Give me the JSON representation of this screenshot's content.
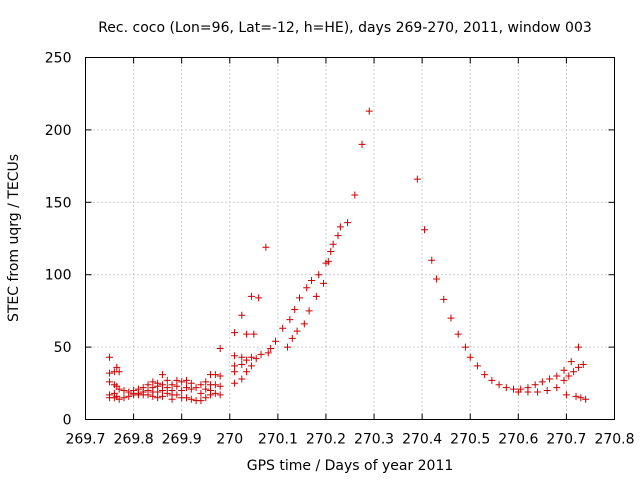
{
  "chart_data": {
    "type": "scatter",
    "title": "Rec. coco (Lon=96, Lat=-12, h=HE), days 269-270, 2011, window 003",
    "xlabel": "GPS time / Days of year 2011",
    "ylabel": "STEC from uqrg / TECUs",
    "xlim": [
      269.7,
      270.8
    ],
    "ylim": [
      0,
      250
    ],
    "xticks": [
      "269.7",
      "269.8",
      "269.9",
      "270",
      "270.1",
      "270.2",
      "270.3",
      "270.4",
      "270.5",
      "270.6",
      "270.7",
      "270.8"
    ],
    "yticks": [
      "0",
      "50",
      "100",
      "150",
      "200",
      "250"
    ],
    "grid": true,
    "marker": "+",
    "color": "#cc0000",
    "points": [
      [
        269.75,
        43
      ],
      [
        269.75,
        32
      ],
      [
        269.75,
        26
      ],
      [
        269.75,
        17
      ],
      [
        269.75,
        15
      ],
      [
        269.76,
        33
      ],
      [
        269.76,
        24
      ],
      [
        269.76,
        18
      ],
      [
        269.76,
        15
      ],
      [
        269.765,
        36
      ],
      [
        269.765,
        23
      ],
      [
        269.765,
        16
      ],
      [
        269.77,
        33
      ],
      [
        269.77,
        21
      ],
      [
        269.77,
        14
      ],
      [
        269.78,
        20
      ],
      [
        269.78,
        15
      ],
      [
        269.79,
        19
      ],
      [
        269.79,
        16
      ],
      [
        269.8,
        18
      ],
      [
        269.8,
        17
      ],
      [
        269.8,
        20
      ],
      [
        269.81,
        21
      ],
      [
        269.81,
        17
      ],
      [
        269.81,
        18
      ],
      [
        269.82,
        22
      ],
      [
        269.82,
        19
      ],
      [
        269.82,
        17
      ],
      [
        269.83,
        24
      ],
      [
        269.83,
        20
      ],
      [
        269.83,
        17
      ],
      [
        269.84,
        26
      ],
      [
        269.84,
        22
      ],
      [
        269.84,
        19
      ],
      [
        269.84,
        16
      ],
      [
        269.85,
        25
      ],
      [
        269.85,
        23
      ],
      [
        269.85,
        19
      ],
      [
        269.85,
        15
      ],
      [
        269.86,
        31
      ],
      [
        269.86,
        24
      ],
      [
        269.86,
        20
      ],
      [
        269.86,
        16
      ],
      [
        269.87,
        27
      ],
      [
        269.87,
        22
      ],
      [
        269.87,
        18
      ],
      [
        269.88,
        24
      ],
      [
        269.88,
        20
      ],
      [
        269.88,
        17
      ],
      [
        269.88,
        14
      ],
      [
        269.89,
        27
      ],
      [
        269.89,
        23
      ],
      [
        269.89,
        17
      ],
      [
        269.9,
        26
      ],
      [
        269.9,
        20
      ],
      [
        269.9,
        15
      ],
      [
        269.91,
        27
      ],
      [
        269.91,
        22
      ],
      [
        269.91,
        15
      ],
      [
        269.92,
        25
      ],
      [
        269.92,
        21
      ],
      [
        269.92,
        14
      ],
      [
        269.93,
        22
      ],
      [
        269.93,
        13
      ],
      [
        269.94,
        24
      ],
      [
        269.94,
        18
      ],
      [
        269.94,
        13
      ],
      [
        269.95,
        26
      ],
      [
        269.95,
        21
      ],
      [
        269.95,
        15
      ],
      [
        269.96,
        31
      ],
      [
        269.96,
        24
      ],
      [
        269.96,
        20
      ],
      [
        269.96,
        17
      ],
      [
        269.97,
        31
      ],
      [
        269.97,
        24
      ],
      [
        269.97,
        18
      ],
      [
        269.98,
        49
      ],
      [
        269.98,
        30
      ],
      [
        269.98,
        23
      ],
      [
        269.98,
        17
      ],
      [
        270.01,
        60
      ],
      [
        270.01,
        44
      ],
      [
        270.01,
        37
      ],
      [
        270.01,
        33
      ],
      [
        270.01,
        25
      ],
      [
        270.025,
        72
      ],
      [
        270.025,
        43
      ],
      [
        270.025,
        38
      ],
      [
        270.025,
        28
      ],
      [
        270.035,
        59
      ],
      [
        270.035,
        41
      ],
      [
        270.035,
        33
      ],
      [
        270.045,
        85
      ],
      [
        270.045,
        43
      ],
      [
        270.045,
        37
      ],
      [
        270.05,
        59
      ],
      [
        270.055,
        42
      ],
      [
        270.06,
        84
      ],
      [
        270.065,
        45
      ],
      [
        270.075,
        119
      ],
      [
        270.08,
        46
      ],
      [
        270.085,
        49
      ],
      [
        270.095,
        54
      ],
      [
        270.11,
        63
      ],
      [
        270.12,
        50
      ],
      [
        270.125,
        69
      ],
      [
        270.13,
        56
      ],
      [
        270.135,
        76
      ],
      [
        270.14,
        61
      ],
      [
        270.145,
        84
      ],
      [
        270.155,
        66
      ],
      [
        270.16,
        91
      ],
      [
        270.165,
        75
      ],
      [
        270.17,
        96
      ],
      [
        270.18,
        85
      ],
      [
        270.185,
        100
      ],
      [
        270.195,
        94
      ],
      [
        270.2,
        108
      ],
      [
        270.205,
        109
      ],
      [
        270.21,
        116
      ],
      [
        270.215,
        121
      ],
      [
        270.225,
        127
      ],
      [
        270.23,
        133
      ],
      [
        270.245,
        136
      ],
      [
        270.26,
        155
      ],
      [
        270.275,
        190
      ],
      [
        270.29,
        213
      ],
      [
        270.39,
        166
      ],
      [
        270.405,
        131
      ],
      [
        270.42,
        110
      ],
      [
        270.43,
        97
      ],
      [
        270.445,
        83
      ],
      [
        270.46,
        70
      ],
      [
        270.475,
        59
      ],
      [
        270.49,
        50
      ],
      [
        270.5,
        43
      ],
      [
        270.515,
        37
      ],
      [
        270.53,
        31
      ],
      [
        270.545,
        27
      ],
      [
        270.56,
        24
      ],
      [
        270.575,
        22
      ],
      [
        270.59,
        21
      ],
      [
        270.605,
        21
      ],
      [
        270.62,
        22
      ],
      [
        270.635,
        24
      ],
      [
        270.65,
        26
      ],
      [
        270.665,
        28
      ],
      [
        270.68,
        30
      ],
      [
        270.695,
        34
      ],
      [
        270.71,
        40
      ],
      [
        270.725,
        50
      ],
      [
        270.6,
        19
      ],
      [
        270.62,
        19
      ],
      [
        270.64,
        19
      ],
      [
        270.66,
        20
      ],
      [
        270.68,
        22
      ],
      [
        270.695,
        27
      ],
      [
        270.705,
        30
      ],
      [
        270.715,
        33
      ],
      [
        270.725,
        36
      ],
      [
        270.735,
        38
      ],
      [
        270.7,
        17
      ],
      [
        270.72,
        16
      ],
      [
        270.73,
        15
      ],
      [
        270.74,
        14
      ]
    ]
  }
}
